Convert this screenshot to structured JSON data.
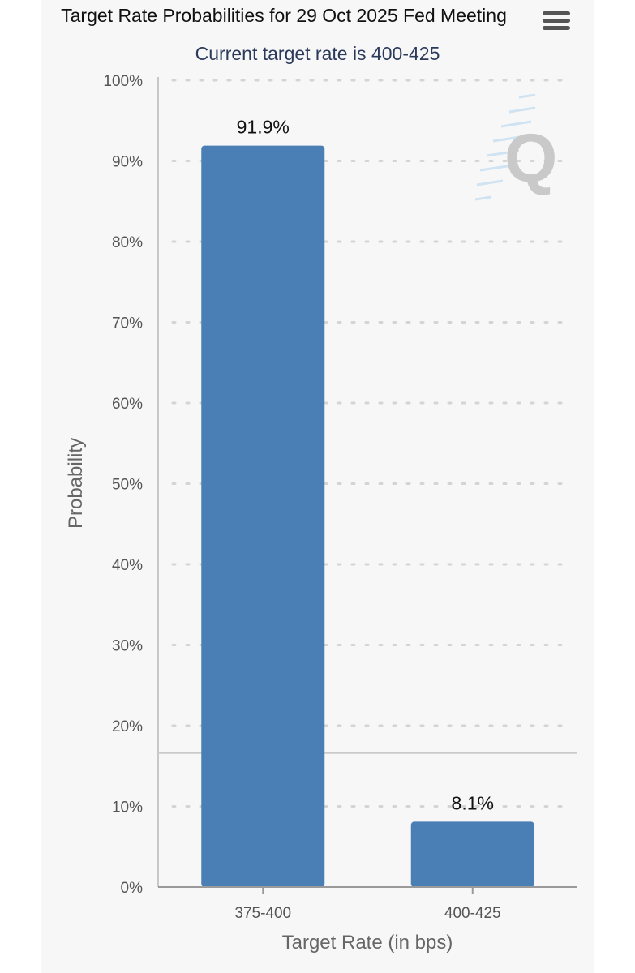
{
  "header": {
    "title": "Target Rate Probabilities for 29 Oct 2025 Fed Meeting",
    "subtitle": "Current target rate is 400-425",
    "menu_icon": "hamburger-menu-icon"
  },
  "watermark": {
    "glyph": "Q"
  },
  "chart_data": {
    "type": "bar",
    "title": "Target Rate Probabilities for 29 Oct 2025 Fed Meeting",
    "subtitle": "Current target rate is 400-425",
    "categories": [
      "375-400",
      "400-425"
    ],
    "values": [
      91.9,
      8.1
    ],
    "data_labels": [
      "91.9%",
      "8.1%"
    ],
    "xlabel": "Target Rate (in bps)",
    "ylabel": "Probability",
    "ylim": [
      0,
      100
    ],
    "yticks": [
      0,
      10,
      20,
      30,
      40,
      50,
      60,
      70,
      80,
      90,
      100
    ],
    "ytick_labels": [
      "0%",
      "10%",
      "20%",
      "30%",
      "40%",
      "50%",
      "60%",
      "70%",
      "80%",
      "90%",
      "100%"
    ],
    "reference_line_value": 16.6,
    "bar_color": "#4a7fb5",
    "grid": "dotted-horizontal",
    "legend": "none"
  }
}
